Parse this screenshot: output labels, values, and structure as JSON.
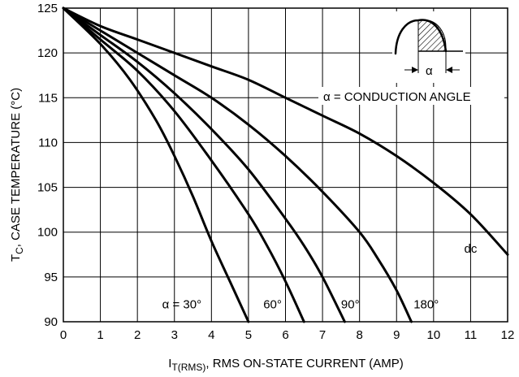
{
  "chart_data": {
    "type": "line",
    "xlabel_main": "I",
    "xlabel_sub": "T(RMS)",
    "xlabel_rest": ", RMS ON-STATE CURRENT (AMP)",
    "ylabel_main": "T",
    "ylabel_sub": "C",
    "ylabel_rest": ", CASE TEMPERATURE (°C)",
    "xlim": [
      0,
      12
    ],
    "ylim": [
      90,
      125
    ],
    "xticks": [
      0,
      1,
      2,
      3,
      4,
      5,
      6,
      7,
      8,
      9,
      10,
      11,
      12
    ],
    "yticks": [
      90,
      95,
      100,
      105,
      110,
      115,
      120,
      125
    ],
    "grid": true,
    "annotation": "α = CONDUCTION ANGLE",
    "inset_label": "α",
    "series": [
      {
        "name": "α = 30°",
        "x": [
          0,
          1,
          1.8,
          2.5,
          3,
          3.5,
          4,
          4.5,
          5
        ],
        "y": [
          125,
          121,
          117,
          112.5,
          108.5,
          104,
          99,
          94.5,
          90
        ]
      },
      {
        "name": "60°",
        "x": [
          0,
          1,
          2,
          3,
          4,
          5,
          5.5,
          6,
          6.5
        ],
        "y": [
          125,
          121.5,
          118,
          113.5,
          108,
          102,
          98.5,
          94.5,
          90
        ]
      },
      {
        "name": "90°",
        "x": [
          0,
          1,
          2,
          3,
          4,
          5,
          6,
          6.5,
          7,
          7.6
        ],
        "y": [
          125,
          122,
          119,
          115.5,
          111.5,
          107,
          101.5,
          98.5,
          95,
          90
        ]
      },
      {
        "name": "180°",
        "x": [
          0,
          1,
          2,
          3,
          4,
          5,
          6,
          7,
          8,
          8.5,
          9,
          9.4
        ],
        "y": [
          125,
          122.5,
          120,
          117.5,
          115,
          112,
          108.5,
          104.5,
          100,
          97,
          93.5,
          90
        ]
      },
      {
        "name": "dc",
        "x": [
          0,
          1,
          2,
          3,
          4,
          5,
          6,
          7,
          8,
          9,
          10,
          11,
          12
        ],
        "y": [
          125,
          123,
          121.5,
          120,
          118.5,
          117,
          115,
          113,
          111,
          108.5,
          105.5,
          102,
          97.5
        ]
      }
    ],
    "curve_labels": [
      {
        "text": "α = 30°",
        "x": 3.2,
        "y": 91.5
      },
      {
        "text": "60°",
        "x": 5.65,
        "y": 91.5
      },
      {
        "text": "90°",
        "x": 7.75,
        "y": 91.5
      },
      {
        "text": "180°",
        "x": 9.8,
        "y": 91.5
      },
      {
        "text": "dc",
        "x": 11.0,
        "y": 97.7
      }
    ]
  }
}
